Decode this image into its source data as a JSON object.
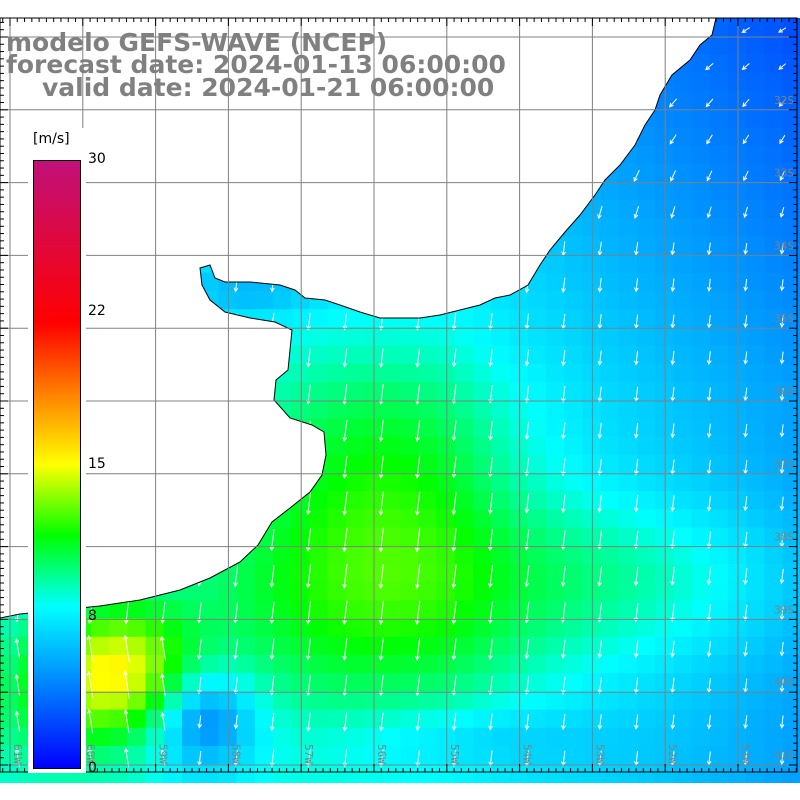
{
  "title": {
    "line1": "modelo GEFS-WAVE (NCEP)",
    "line2": "forecast date: 2024-01-13 06:00:00",
    "line3": "valid date: 2024-01-21 06:00:00"
  },
  "variable": "wind speed and direction",
  "colorbar": {
    "unit": "[m/s]",
    "ticks": [
      "30",
      "22",
      "15",
      "8",
      "0"
    ],
    "range": [
      0,
      30
    ],
    "stops": [
      {
        "value": 0,
        "color": "#0000ff"
      },
      {
        "value": 8,
        "color": "#00ffff"
      },
      {
        "value": 11.5,
        "color": "#00ff00"
      },
      {
        "value": 15,
        "color": "#ffff00"
      },
      {
        "value": 18.5,
        "color": "#ff8000"
      },
      {
        "value": 22,
        "color": "#ff0000"
      },
      {
        "value": 30,
        "color": "#c0107a"
      }
    ]
  },
  "latitude_labels": [
    "32S",
    "33S",
    "34S",
    "35S",
    "36S",
    "37S",
    "38S",
    "39S",
    "40S",
    "41S"
  ],
  "longitude_labels": [
    "61W",
    "60W",
    "59W",
    "58W",
    "57W",
    "56W",
    "55W",
    "54W",
    "53W",
    "52W",
    "51W"
  ],
  "colors": {
    "label": "#808080",
    "grid": "#808080",
    "land": "#ffffff",
    "arrow": "#ffffff"
  }
}
